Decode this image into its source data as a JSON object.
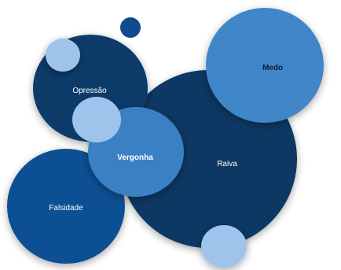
{
  "bubbles": {
    "raiva": {
      "label": "Raiva",
      "color": "#0a3764"
    },
    "medo": {
      "label": "Medo",
      "color": "#3f86c8"
    },
    "opressao": {
      "label": "Opressão",
      "color": "#0c3a69"
    },
    "vergonha": {
      "label": "Vergonha",
      "color": "#3a80c4"
    },
    "falsidade": {
      "label": "Falsidade",
      "color": "#0f4f93"
    }
  },
  "decor_colors": {
    "light_blue": "#9ec4ec",
    "navy": "#0f4b8e",
    "shadow": "#000000"
  }
}
